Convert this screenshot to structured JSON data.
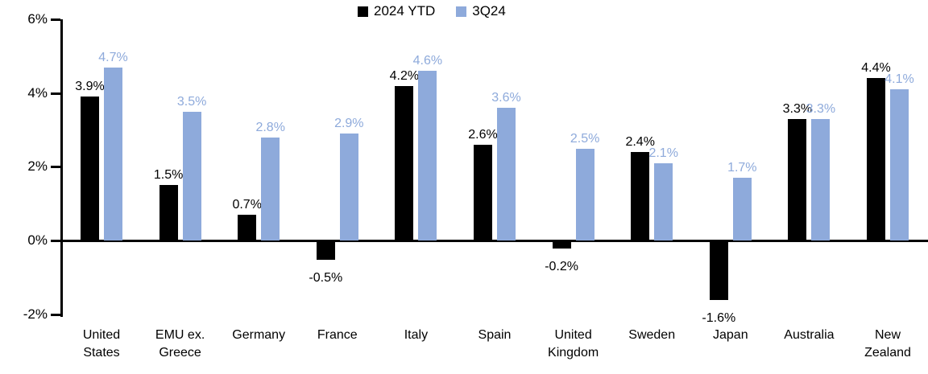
{
  "legend": {
    "items": [
      {
        "label": "2024 YTD",
        "color": "#000000"
      },
      {
        "label": "3Q24",
        "color": "#8EAADB"
      }
    ]
  },
  "chart_data": {
    "type": "bar",
    "categories": [
      "United States",
      "EMU ex. Greece",
      "Germany",
      "France",
      "Italy",
      "Spain",
      "United Kingdom",
      "Sweden",
      "Japan",
      "Australia",
      "New Zealand"
    ],
    "series": [
      {
        "name": "2024 YTD",
        "color": "#000000",
        "values": [
          3.9,
          1.5,
          0.7,
          -0.5,
          4.2,
          2.6,
          -0.2,
          2.4,
          -1.6,
          3.3,
          4.4
        ]
      },
      {
        "name": "3Q24",
        "color": "#8EAADB",
        "values": [
          4.7,
          3.5,
          2.8,
          2.9,
          4.6,
          3.6,
          2.5,
          2.1,
          1.7,
          3.3,
          4.1
        ]
      }
    ],
    "value_suffix": "%",
    "value_decimals": 1,
    "yticks": [
      6,
      4,
      2,
      0,
      -2
    ],
    "ytick_labels": [
      "6%",
      "4%",
      "2%",
      "0%",
      "-2%"
    ],
    "ylim": [
      -2,
      6
    ],
    "grid": false,
    "legend_position": "top-center",
    "title": "",
    "xlabel": "",
    "ylabel": ""
  }
}
